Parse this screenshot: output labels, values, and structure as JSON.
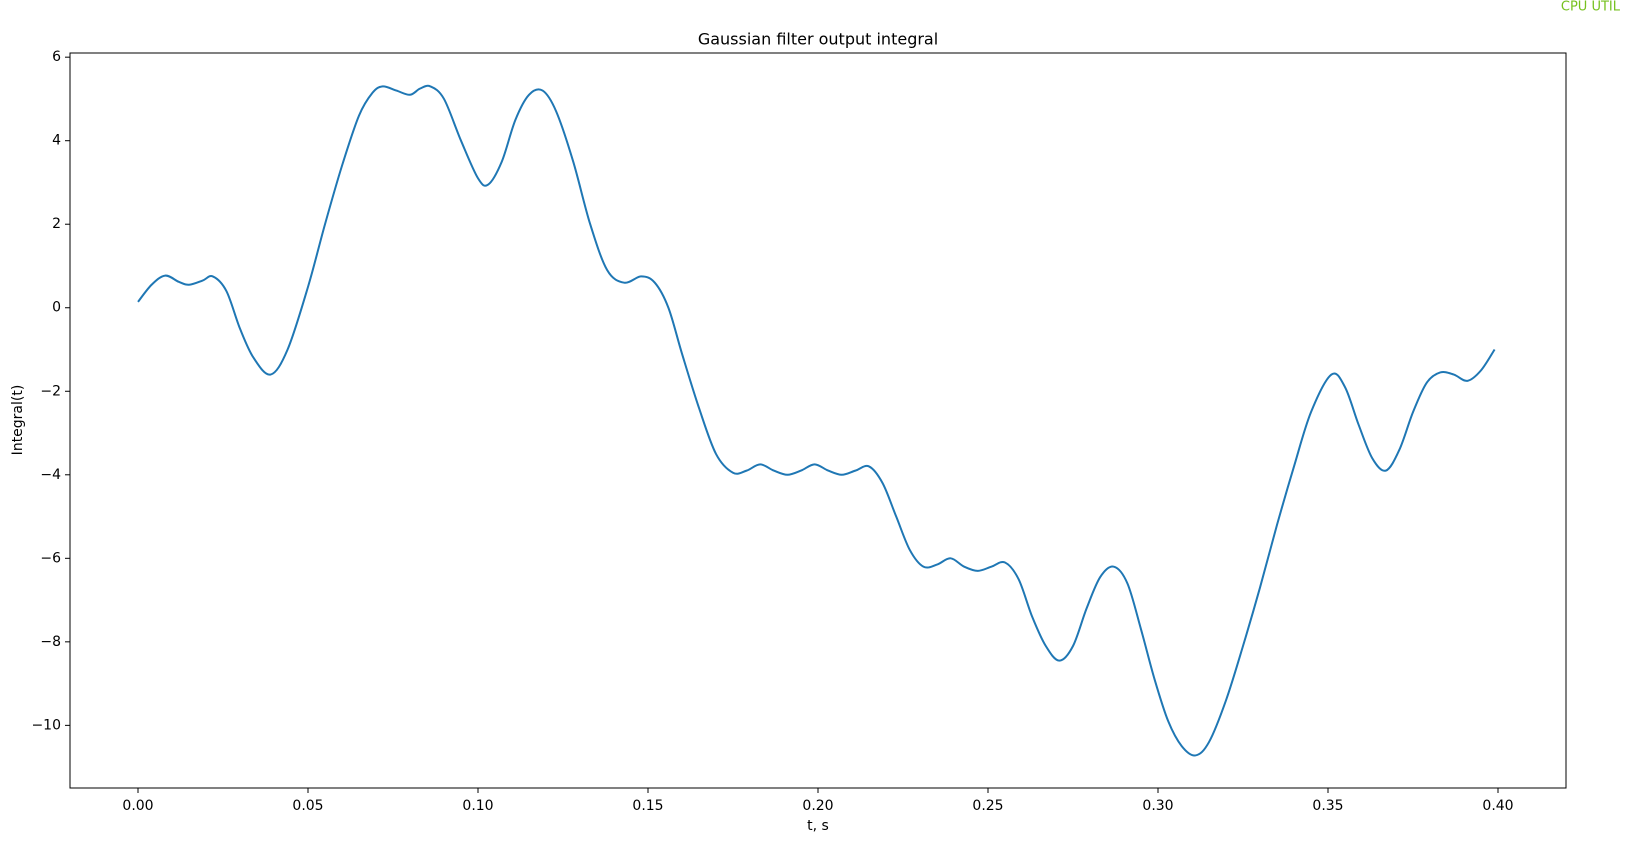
{
  "screen": {
    "badge": "CPU UTIL"
  },
  "chart_data": {
    "type": "line",
    "title": "Gaussian filter output integral",
    "xlabel": "t, s",
    "ylabel": "Integral(t)",
    "grid": false,
    "x": [
      0.0,
      0.004,
      0.008,
      0.012,
      0.015,
      0.019,
      0.022,
      0.026,
      0.03,
      0.034,
      0.039,
      0.044,
      0.05,
      0.055,
      0.06,
      0.065,
      0.069,
      0.072,
      0.076,
      0.08,
      0.083,
      0.086,
      0.09,
      0.095,
      0.1,
      0.103,
      0.107,
      0.111,
      0.115,
      0.119,
      0.123,
      0.128,
      0.133,
      0.138,
      0.143,
      0.148,
      0.152,
      0.156,
      0.16,
      0.165,
      0.17,
      0.175,
      0.179,
      0.183,
      0.187,
      0.191,
      0.195,
      0.199,
      0.203,
      0.207,
      0.211,
      0.215,
      0.219,
      0.223,
      0.227,
      0.231,
      0.235,
      0.239,
      0.243,
      0.247,
      0.251,
      0.255,
      0.259,
      0.263,
      0.267,
      0.271,
      0.275,
      0.279,
      0.283,
      0.287,
      0.291,
      0.295,
      0.299,
      0.303,
      0.307,
      0.311,
      0.315,
      0.32,
      0.325,
      0.33,
      0.335,
      0.34,
      0.345,
      0.351,
      0.355,
      0.359,
      0.363,
      0.367,
      0.371,
      0.375,
      0.379,
      0.383,
      0.387,
      0.391,
      0.395,
      0.399
    ],
    "series": [
      {
        "name": "Integral(t)",
        "color": "#1f77b4",
        "values": [
          0.14,
          0.55,
          0.77,
          0.62,
          0.55,
          0.65,
          0.75,
          0.4,
          -0.5,
          -1.2,
          -1.6,
          -1.0,
          0.5,
          2.0,
          3.4,
          4.6,
          5.15,
          5.3,
          5.2,
          5.1,
          5.25,
          5.3,
          5.0,
          4.0,
          3.1,
          2.95,
          3.5,
          4.5,
          5.1,
          5.2,
          4.7,
          3.5,
          2.0,
          0.9,
          0.6,
          0.75,
          0.6,
          0.0,
          -1.1,
          -2.4,
          -3.5,
          -3.95,
          -3.9,
          -3.75,
          -3.9,
          -4.0,
          -3.9,
          -3.75,
          -3.9,
          -4.0,
          -3.9,
          -3.8,
          -4.2,
          -5.0,
          -5.8,
          -6.2,
          -6.15,
          -6.0,
          -6.2,
          -6.3,
          -6.2,
          -6.1,
          -6.5,
          -7.4,
          -8.1,
          -8.45,
          -8.1,
          -7.2,
          -6.45,
          -6.2,
          -6.6,
          -7.7,
          -8.9,
          -9.9,
          -10.5,
          -10.72,
          -10.4,
          -9.4,
          -8.1,
          -6.7,
          -5.2,
          -3.8,
          -2.5,
          -1.6,
          -1.9,
          -2.8,
          -3.6,
          -3.9,
          -3.4,
          -2.5,
          -1.8,
          -1.55,
          -1.6,
          -1.75,
          -1.5,
          -1.0
        ]
      }
    ],
    "xlim": [
      -0.02,
      0.42
    ],
    "xticks": [
      {
        "value": 0,
        "label": "0.00"
      },
      {
        "value": 0.05,
        "label": "0.05"
      },
      {
        "value": 0.1,
        "label": "0.10"
      },
      {
        "value": 0.15,
        "label": "0.15"
      },
      {
        "value": 0.2,
        "label": "0.20"
      },
      {
        "value": 0.25,
        "label": "0.25"
      },
      {
        "value": 0.3,
        "label": "0.30"
      },
      {
        "value": 0.35,
        "label": "0.35"
      },
      {
        "value": 0.4,
        "label": "0.40"
      }
    ],
    "ylim": [
      -11.5,
      6.1
    ],
    "yticks": [
      {
        "value": -10,
        "label": "−10"
      },
      {
        "value": -8,
        "label": "−8"
      },
      {
        "value": -6,
        "label": "−6"
      },
      {
        "value": -4,
        "label": "−4"
      },
      {
        "value": -2,
        "label": "−2"
      },
      0,
      2,
      4,
      6
    ]
  }
}
